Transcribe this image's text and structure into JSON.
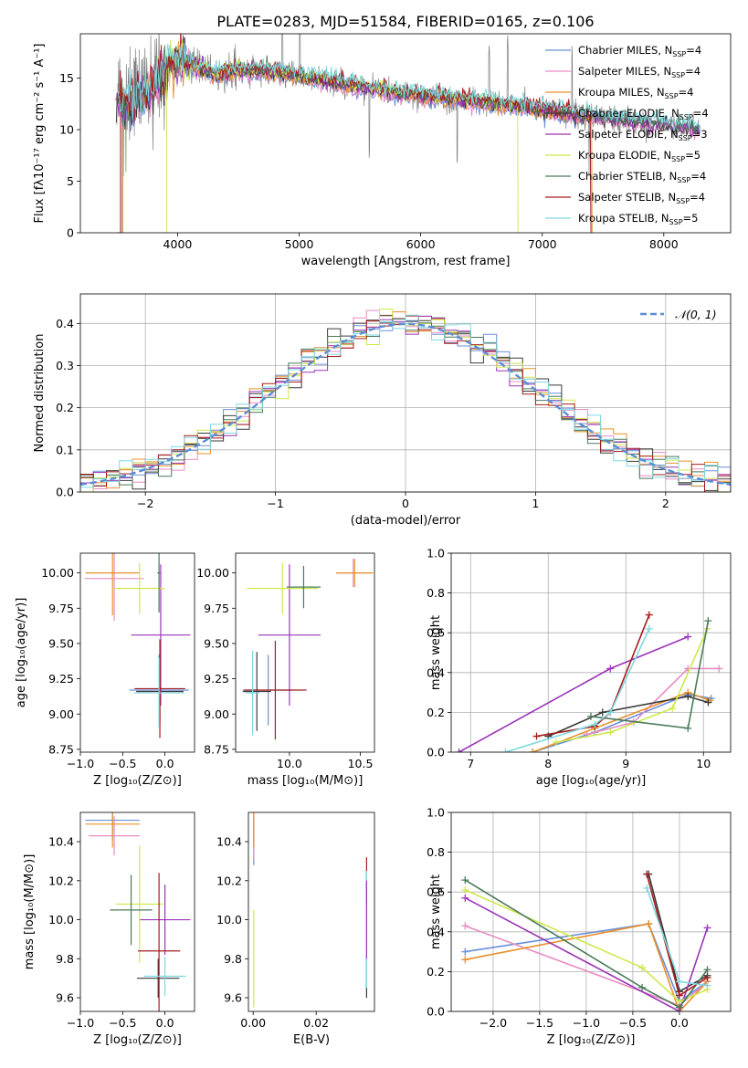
{
  "figure": {
    "title": "PLATE=0283, MJD=51584, FIBERID=0165, z=0.106"
  },
  "colors": {
    "Chabrier MILES": "#6b8fd8",
    "Salpeter MILES": "#e88cc4",
    "Kroupa MILES": "#e8902a",
    "Chabrier ELODIE": "#3a3a3a",
    "Salpeter ELODIE": "#9b35b8",
    "Kroupa ELODIE": "#cfe84a",
    "Chabrier STELIB": "#4a7a5a",
    "Salpeter STELIB": "#a81c1c",
    "Kroupa STELIB": "#7ed8e0",
    "data": "#808080",
    "gaussian": "#5b8dd6"
  },
  "chart_data": [
    {
      "id": "spectrum",
      "type": "line",
      "xlabel": "wavelength [Angstrom, rest frame]",
      "ylabel": "Flux [fλ10⁻¹⁷ erg cm⁻² s⁻¹ A⁻¹]",
      "xlim": [
        3200,
        8550
      ],
      "ylim": [
        0,
        19.3
      ],
      "xticks": [
        "4000",
        "5000",
        "6000",
        "7000",
        "8000"
      ],
      "yticks": [
        "0",
        "5",
        "10",
        "15"
      ],
      "legend_position": "top-right",
      "legend": [
        {
          "model": "Chabrier MILES",
          "label": "Chabrier MILES, N",
          "sub": "SSP",
          "tail": "=4"
        },
        {
          "model": "Salpeter MILES",
          "label": "Salpeter MILES, N",
          "sub": "SSP",
          "tail": "=4"
        },
        {
          "model": "Kroupa MILES",
          "label": "Kroupa MILES, N",
          "sub": "SSP",
          "tail": "=4"
        },
        {
          "model": "Chabrier ELODIE",
          "label": "Chabrier ELODIE, N",
          "sub": "SSP",
          "tail": "=4"
        },
        {
          "model": "Salpeter ELODIE",
          "label": "Salpeter ELODIE, N",
          "sub": "SSP",
          "tail": "=3"
        },
        {
          "model": "Kroupa ELODIE",
          "label": "Kroupa ELODIE, N",
          "sub": "SSP",
          "tail": "=5"
        },
        {
          "model": "Chabrier STELIB",
          "label": "Chabrier STELIB, N",
          "sub": "SSP",
          "tail": "=4"
        },
        {
          "model": "Salpeter STELIB",
          "label": "Salpeter STELIB, N",
          "sub": "SSP",
          "tail": "=4"
        },
        {
          "model": "Kroupa STELIB",
          "label": "Kroupa STELIB, N",
          "sub": "SSP",
          "tail": "=5"
        }
      ],
      "data_range": [
        3500,
        8300
      ],
      "continuum_points": [
        [
          3480,
          13.0
        ],
        [
          3600,
          12.6
        ],
        [
          3700,
          13.2
        ],
        [
          3850,
          14.6
        ],
        [
          3950,
          16.6
        ],
        [
          4100,
          16.3
        ],
        [
          4300,
          15.4
        ],
        [
          4500,
          15.8
        ],
        [
          4800,
          15.6
        ],
        [
          5000,
          15.2
        ],
        [
          5300,
          14.6
        ],
        [
          5600,
          14.0
        ],
        [
          6000,
          13.3
        ],
        [
          6400,
          12.8
        ],
        [
          6800,
          12.3
        ],
        [
          7200,
          11.6
        ],
        [
          7600,
          11.0
        ],
        [
          8000,
          10.5
        ],
        [
          8300,
          10.0
        ]
      ],
      "model_cutoffs": [
        {
          "model": "Kroupa MILES",
          "start": 3550,
          "end": 7410
        },
        {
          "model": "Salpeter STELIB",
          "start": 3530,
          "end": 7400
        },
        {
          "model": "Kroupa ELODIE",
          "start": 3910,
          "end": 6800
        },
        {
          "model": "Chabrier MILES",
          "start": 3540,
          "end": 7400
        }
      ]
    },
    {
      "id": "residuals",
      "type": "histogram",
      "xlabel": "(data-model)/error",
      "ylabel": "Normed distribution",
      "xlim": [
        -2.5,
        2.5
      ],
      "ylim": [
        0,
        0.47
      ],
      "xticks": [
        "−2",
        "−1",
        "0",
        "1",
        "2"
      ],
      "yticks": [
        "0.0",
        "0.1",
        "0.2",
        "0.3",
        "0.4"
      ],
      "grid": true,
      "legend_position": "top-right",
      "gaussian_label": "𝒩(0, 1)",
      "bin_width": 0.1
    },
    {
      "id": "age-vs-Z",
      "type": "errorbar",
      "xlabel": "Z [log₁₀(Z/Z⊙)]",
      "ylabel": "age  [log₁₀(age/yr)]",
      "xlim": [
        -1.0,
        0.35
      ],
      "ylim": [
        8.73,
        10.14
      ],
      "xticks": [
        "−1.0",
        "−0.5",
        "0.0"
      ],
      "yticks": [
        "8.75",
        "9.00",
        "9.25",
        "9.50",
        "9.75",
        "10.00"
      ],
      "points": [
        {
          "model": "Chabrier MILES",
          "x": -0.07,
          "y": 9.17,
          "xerr": 0.35,
          "yerr": 0.25
        },
        {
          "model": "Salpeter MILES",
          "x": -0.6,
          "y": 9.96,
          "xerr": 0.35,
          "yerr": 0.3
        },
        {
          "model": "Kroupa MILES",
          "x": -0.62,
          "y": 10.0,
          "xerr": 0.32,
          "yerr": 0.3
        },
        {
          "model": "Chabrier ELODIE",
          "x": -0.06,
          "y": 9.16,
          "xerr": 0.28,
          "yerr": 0.22
        },
        {
          "model": "Salpeter ELODIE",
          "x": -0.05,
          "y": 9.56,
          "xerr": 0.35,
          "yerr": 0.5
        },
        {
          "model": "Kroupa ELODIE",
          "x": -0.3,
          "y": 9.89,
          "xerr": 0.3,
          "yerr": 0.18
        },
        {
          "model": "Chabrier STELIB",
          "x": -0.07,
          "y": 10.0,
          "xerr": 0.02,
          "yerr": 0.28
        },
        {
          "model": "Salpeter STELIB",
          "x": -0.06,
          "y": 9.18,
          "xerr": 0.3,
          "yerr": 0.35
        },
        {
          "model": "Kroupa STELIB",
          "x": -0.07,
          "y": 9.15,
          "xerr": 0.3,
          "yerr": 0.25
        }
      ]
    },
    {
      "id": "age-vs-mass",
      "type": "errorbar",
      "xlabel": "mass [log₁₀(M/M⊙)]",
      "ylabel": "",
      "xlim": [
        9.62,
        10.6
      ],
      "ylim": [
        8.73,
        10.14
      ],
      "xticks": [
        "10.0",
        "10.5"
      ],
      "yticks": [
        "8.75",
        "9.00",
        "9.25",
        "9.50",
        "9.75",
        "10.00"
      ],
      "points": [
        {
          "model": "Chabrier MILES",
          "x": 9.85,
          "y": 9.17,
          "xerr": 0.18,
          "yerr": 0.25
        },
        {
          "model": "Salpeter MILES",
          "x": 10.45,
          "y": 10.0,
          "xerr": 0.12,
          "yerr": 0.1
        },
        {
          "model": "Kroupa MILES",
          "x": 10.46,
          "y": 10.0,
          "xerr": 0.13,
          "yerr": 0.1
        },
        {
          "model": "Chabrier ELODIE",
          "x": 9.77,
          "y": 9.16,
          "xerr": 0.1,
          "yerr": 0.28
        },
        {
          "model": "Salpeter ELODIE",
          "x": 10.0,
          "y": 9.56,
          "xerr": 0.22,
          "yerr": 0.5
        },
        {
          "model": "Kroupa ELODIE",
          "x": 9.95,
          "y": 9.89,
          "xerr": 0.25,
          "yerr": 0.18
        },
        {
          "model": "Chabrier STELIB",
          "x": 10.1,
          "y": 9.9,
          "xerr": 0.12,
          "yerr": 0.15
        },
        {
          "model": "Salpeter STELIB",
          "x": 9.9,
          "y": 9.17,
          "xerr": 0.22,
          "yerr": 0.35
        },
        {
          "model": "Kroupa STELIB",
          "x": 9.74,
          "y": 9.15,
          "xerr": 0.05,
          "yerr": 0.3
        }
      ]
    },
    {
      "id": "weight-vs-age",
      "type": "line",
      "xlabel": "age  [log₁₀(age/yr)]",
      "ylabel": "mass weight",
      "xlim": [
        6.75,
        10.35
      ],
      "ylim": [
        0,
        1.0
      ],
      "xticks": [
        "7",
        "8",
        "9",
        "10"
      ],
      "yticks": [
        "0.0",
        "0.2",
        "0.4",
        "0.6",
        "0.8",
        "1.0"
      ],
      "grid": true,
      "series": [
        {
          "model": "Chabrier MILES",
          "x": [
            7.8,
            8.6,
            9.8,
            10.1
          ],
          "y": [
            0.0,
            0.1,
            0.29,
            0.27
          ]
        },
        {
          "model": "Salpeter MILES",
          "x": [
            8.5,
            9.1,
            9.8,
            10.2
          ],
          "y": [
            0.09,
            0.15,
            0.42,
            0.42
          ]
        },
        {
          "model": "Kroupa MILES",
          "x": [
            7.8,
            8.6,
            9.8,
            10.08
          ],
          "y": [
            0.0,
            0.12,
            0.3,
            0.26
          ]
        },
        {
          "model": "Chabrier ELODIE",
          "x": [
            8.0,
            8.7,
            9.8,
            10.06
          ],
          "y": [
            0.08,
            0.2,
            0.28,
            0.25
          ]
        },
        {
          "model": "Salpeter ELODIE",
          "x": [
            6.85,
            8.8,
            9.8
          ],
          "y": [
            0.0,
            0.42,
            0.58
          ]
        },
        {
          "model": "Kroupa ELODIE",
          "x": [
            8.1,
            8.8,
            9.6,
            10.05
          ],
          "y": [
            0.05,
            0.1,
            0.22,
            0.62
          ]
        },
        {
          "model": "Chabrier STELIB",
          "x": [
            8.55,
            9.8,
            10.06
          ],
          "y": [
            0.18,
            0.12,
            0.66
          ]
        },
        {
          "model": "Salpeter STELIB",
          "x": [
            7.85,
            8.6,
            8.8,
            9.3
          ],
          "y": [
            0.08,
            0.13,
            0.2,
            0.69
          ]
        },
        {
          "model": "Kroupa STELIB",
          "x": [
            7.45,
            8.6,
            8.8,
            9.3
          ],
          "y": [
            0.0,
            0.14,
            0.2,
            0.62
          ]
        }
      ]
    },
    {
      "id": "mass-vs-Z",
      "type": "errorbar",
      "xlabel": "Z [log₁₀(Z/Z⊙)]",
      "ylabel": "mass [log₁₀(M/M⊙)]",
      "xlim": [
        -1.0,
        0.35
      ],
      "ylim": [
        9.53,
        10.55
      ],
      "xticks": [
        "−1.0",
        "−0.5",
        "0.0"
      ],
      "yticks": [
        "9.6",
        "9.8",
        "10.0",
        "10.2",
        "10.4"
      ],
      "points": [
        {
          "model": "Chabrier MILES",
          "x": -0.62,
          "y": 10.51,
          "xerr": 0.32,
          "yerr": 0.1
        },
        {
          "model": "Salpeter MILES",
          "x": -0.6,
          "y": 10.43,
          "xerr": 0.3,
          "yerr": 0.1
        },
        {
          "model": "Kroupa MILES",
          "x": -0.62,
          "y": 10.49,
          "xerr": 0.32,
          "yerr": 0.12
        },
        {
          "model": "Chabrier ELODIE",
          "x": -0.08,
          "y": 9.7,
          "xerr": 0.25,
          "yerr": 0.1
        },
        {
          "model": "Salpeter ELODIE",
          "x": 0.0,
          "y": 10.0,
          "xerr": 0.3,
          "yerr": 0.18
        },
        {
          "model": "Kroupa ELODIE",
          "x": -0.3,
          "y": 10.08,
          "xerr": 0.28,
          "yerr": 0.3
        },
        {
          "model": "Chabrier STELIB",
          "x": -0.4,
          "y": 10.05,
          "xerr": 0.25,
          "yerr": 0.18
        },
        {
          "model": "Salpeter STELIB",
          "x": -0.07,
          "y": 9.84,
          "xerr": 0.25,
          "yerr": 0.4
        },
        {
          "model": "Kroupa STELIB",
          "x": 0.0,
          "y": 9.71,
          "xerr": 0.25,
          "yerr": 0.1
        }
      ]
    },
    {
      "id": "mass-vs-EBV",
      "type": "errorbar",
      "xlabel": "E(B-V)",
      "ylabel": "",
      "xlim": [
        -0.0015,
        0.0385
      ],
      "ylim": [
        9.53,
        10.55
      ],
      "xticks": [
        "0.00",
        "0.02"
      ],
      "yticks": [
        "9.6",
        "9.8",
        "10.0",
        "10.2",
        "10.4"
      ],
      "points": [
        {
          "model": "Chabrier MILES",
          "x": 0.0002,
          "y": 10.4,
          "xerr": 0,
          "yerr": 0.12
        },
        {
          "model": "Salpeter MILES",
          "x": 0.0002,
          "y": 10.43,
          "xerr": 0,
          "yerr": 0.12
        },
        {
          "model": "Kroupa MILES",
          "x": 0.0002,
          "y": 10.49,
          "xerr": 0,
          "yerr": 0.12
        },
        {
          "model": "Kroupa ELODIE",
          "x": 0.0002,
          "y": 9.8,
          "xerr": 0,
          "yerr": 0.25
        },
        {
          "model": "Chabrier ELODIE",
          "x": 0.036,
          "y": 9.7,
          "xerr": 0,
          "yerr": 0.1
        },
        {
          "model": "Salpeter STELIB",
          "x": 0.036,
          "y": 10.2,
          "xerr": 0,
          "yerr": 0.12
        },
        {
          "model": "Kroupa STELIB",
          "x": 0.036,
          "y": 9.95,
          "xerr": 0,
          "yerr": 0.3
        },
        {
          "model": "Salpeter ELODIE",
          "x": 0.036,
          "y": 10.0,
          "xerr": 0,
          "yerr": 0.2
        }
      ]
    },
    {
      "id": "weight-vs-Z",
      "type": "line",
      "xlabel": "Z [log₁₀(Z/Z⊙)]",
      "ylabel": "mass weight",
      "xlim": [
        -2.45,
        0.55
      ],
      "ylim": [
        0,
        1.0
      ],
      "xticks": [
        "−2.0",
        "−1.5",
        "−1.0",
        "−0.5",
        "0.0"
      ],
      "yticks": [
        "0.0",
        "0.2",
        "0.4",
        "0.6",
        "0.8",
        "1.0"
      ],
      "grid": true,
      "series": [
        {
          "model": "Chabrier MILES",
          "x": [
            -2.3,
            -0.33,
            0.0,
            0.3
          ],
          "y": [
            0.3,
            0.44,
            0.05,
            0.15
          ]
        },
        {
          "model": "Salpeter MILES",
          "x": [
            -2.3,
            0.0,
            0.3
          ],
          "y": [
            0.43,
            0.03,
            0.15
          ]
        },
        {
          "model": "Kroupa MILES",
          "x": [
            -2.3,
            -0.33,
            0.0,
            0.3
          ],
          "y": [
            0.26,
            0.44,
            0.0,
            0.15
          ]
        },
        {
          "model": "Chabrier ELODIE",
          "x": [
            -0.33,
            0.0,
            0.3
          ],
          "y": [
            0.69,
            0.1,
            0.18
          ]
        },
        {
          "model": "Salpeter ELODIE",
          "x": [
            -2.3,
            0.0,
            0.3
          ],
          "y": [
            0.57,
            0.0,
            0.42
          ]
        },
        {
          "model": "Kroupa ELODIE",
          "x": [
            -2.3,
            -0.4,
            0.0,
            0.3
          ],
          "y": [
            0.61,
            0.22,
            0.05,
            0.11
          ]
        },
        {
          "model": "Chabrier STELIB",
          "x": [
            -2.3,
            -0.4,
            0.0,
            0.3
          ],
          "y": [
            0.66,
            0.12,
            0.02,
            0.21
          ]
        },
        {
          "model": "Salpeter STELIB",
          "x": [
            -0.35,
            0.0,
            0.3
          ],
          "y": [
            0.69,
            0.08,
            0.17
          ]
        },
        {
          "model": "Kroupa STELIB",
          "x": [
            -0.35,
            0.0,
            0.3
          ],
          "y": [
            0.62,
            0.15,
            0.13
          ]
        }
      ]
    }
  ]
}
